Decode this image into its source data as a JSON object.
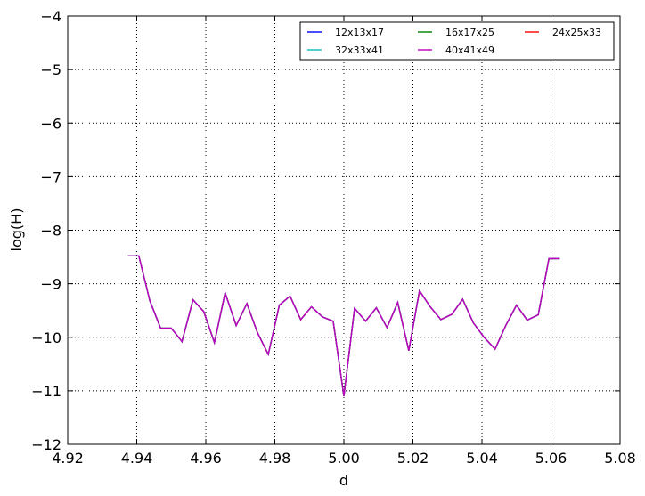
{
  "chart_data": {
    "type": "line",
    "xlabel": "d",
    "ylabel": "log(H)",
    "xlim": [
      4.92,
      5.08
    ],
    "ylim": [
      -12,
      -4
    ],
    "xticks": [
      "4.92",
      "4.94",
      "4.96",
      "4.98",
      "5.00",
      "5.02",
      "5.04",
      "5.06",
      "5.08"
    ],
    "yticks": [
      "−4",
      "−5",
      "−6",
      "−7",
      "−8",
      "−9",
      "−10",
      "−11",
      "−12"
    ],
    "grid": true,
    "legend_position": "top-right",
    "x": [
      4.9375,
      4.9406,
      4.9438,
      4.9469,
      4.95,
      4.9531,
      4.9563,
      4.9594,
      4.9625,
      4.9656,
      4.9688,
      4.9719,
      4.975,
      4.9781,
      4.9813,
      4.9844,
      4.9875,
      4.9906,
      4.9938,
      4.9969,
      5.0,
      5.0031,
      5.0063,
      5.0094,
      5.0125,
      5.0156,
      5.0188,
      5.0219,
      5.025,
      5.0281,
      5.0313,
      5.0344,
      5.0375,
      5.0406,
      5.0438,
      5.0469,
      5.05,
      5.0531,
      5.0563,
      5.0594,
      5.0625
    ],
    "series": [
      {
        "name": "12x13x17",
        "color": "#0000ff"
      },
      {
        "name": "16x17x25",
        "color": "#008000"
      },
      {
        "name": "24x25x33",
        "color": "#ff0000"
      },
      {
        "name": "32x33x41",
        "color": "#00bfbf"
      },
      {
        "name": "40x41x49",
        "color": "#bf00bf"
      }
    ],
    "values": [
      -8.48,
      -8.48,
      -9.32,
      -9.83,
      -9.83,
      -10.08,
      -9.3,
      -9.52,
      -10.1,
      -9.17,
      -9.78,
      -9.37,
      -9.92,
      -10.32,
      -9.4,
      -9.23,
      -9.67,
      -9.43,
      -9.62,
      -9.7,
      -11.1,
      -9.46,
      -9.7,
      -9.45,
      -9.82,
      -9.35,
      -10.25,
      -9.13,
      -9.43,
      -9.67,
      -9.57,
      -9.29,
      -9.73,
      -10.0,
      -10.22,
      -9.78,
      -9.4,
      -9.68,
      -9.58,
      -8.53,
      -8.53
    ]
  }
}
